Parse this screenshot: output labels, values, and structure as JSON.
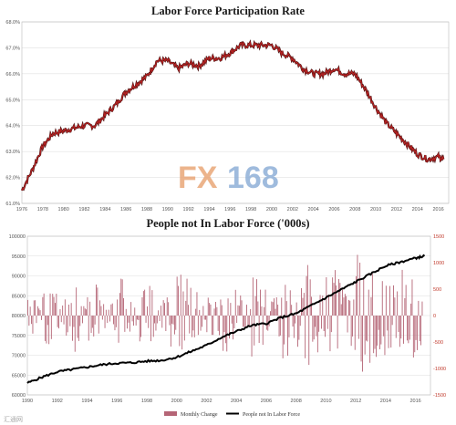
{
  "chart_data": [
    {
      "type": "line",
      "title": "Labor Force Participation Rate",
      "xlabel": "",
      "ylabel": "",
      "xlim": [
        1976,
        2017
      ],
      "ylim": [
        61,
        68
      ],
      "x_ticks": [
        "1976",
        "1978",
        "1980",
        "1982",
        "1984",
        "1986",
        "1988",
        "1990",
        "1992",
        "1994",
        "1996",
        "1998",
        "2000",
        "2002",
        "2004",
        "2006",
        "2008",
        "2010",
        "2012",
        "2014",
        "2016"
      ],
      "y_ticks": [
        "61.0%",
        "62.0%",
        "63.0%",
        "64.0%",
        "65.0%",
        "66.0%",
        "67.0%",
        "68.0%"
      ],
      "grid": true,
      "series": [
        {
          "color": "#b22222",
          "x": [
            1976,
            1977,
            1978,
            1979,
            1980,
            1981,
            1982,
            1983,
            1984,
            1985,
            1986,
            1987,
            1988,
            1989,
            1990,
            1991,
            1992,
            1993,
            1994,
            1995,
            1996,
            1997,
            1998,
            1999,
            2000,
            2001,
            2002,
            2003,
            2004,
            2005,
            2006,
            2007,
            2008,
            2009,
            2010,
            2011,
            2012,
            2013,
            2014,
            2015,
            2016,
            2016.5
          ],
          "y": [
            61.5,
            62.3,
            63.2,
            63.7,
            63.8,
            63.9,
            64.0,
            64.0,
            64.4,
            64.8,
            65.3,
            65.6,
            65.9,
            66.5,
            66.5,
            66.2,
            66.4,
            66.3,
            66.6,
            66.6,
            66.8,
            67.1,
            67.1,
            67.1,
            67.1,
            66.8,
            66.6,
            66.2,
            66.0,
            66.0,
            66.2,
            66.0,
            66.0,
            65.4,
            64.7,
            64.1,
            63.7,
            63.3,
            62.9,
            62.7,
            62.8,
            62.7
          ]
        }
      ]
    },
    {
      "type": "bar",
      "title": "People not In Labor Force ('000s)",
      "xlabel": "",
      "ylabel": "",
      "xlim": [
        1990,
        2017
      ],
      "ylim": [
        60000,
        100000
      ],
      "y2lim": [
        -1500,
        1500
      ],
      "x_ticks": [
        "1990",
        "1992",
        "1994",
        "1996",
        "1998",
        "2000",
        "2002",
        "2004",
        "2006",
        "2008",
        "2010",
        "2012",
        "2014",
        "2016"
      ],
      "y_ticks": [
        "60000",
        "65000",
        "70000",
        "75000",
        "80000",
        "85000",
        "90000",
        "95000",
        "100000"
      ],
      "y2_ticks": [
        "-1500",
        "-1000",
        "-500",
        "0",
        "500",
        "1000",
        "1500"
      ],
      "grid": true,
      "legend_position": "bottom-center",
      "series": [
        {
          "name": "Monthly Change",
          "axis": "right",
          "color": "#b56576",
          "x": [
            1990,
            1990.5,
            1991,
            1991.5,
            1992,
            1992.5,
            1993,
            1993.5,
            1994,
            1994.5,
            1995,
            1995.5,
            1996,
            1996.5,
            1997,
            1997.5,
            1998,
            1998.5,
            1999,
            1999.5,
            2000,
            2000.5,
            2001,
            2001.5,
            2002,
            2002.5,
            2003,
            2003.5,
            2004,
            2004.5,
            2005,
            2005.5,
            2006,
            2006.5,
            2007,
            2007.5,
            2008,
            2008.5,
            2009,
            2009.5,
            2010,
            2010.5,
            2011,
            2011.5,
            2012,
            2012.5,
            2013,
            2013.5,
            2014,
            2014.5,
            2015,
            2015.5,
            2016,
            2016.5
          ],
          "y": [
            400,
            -300,
            600,
            -500,
            300,
            -400,
            700,
            -200,
            500,
            -600,
            300,
            -300,
            800,
            -400,
            200,
            -500,
            600,
            -300,
            400,
            -600,
            800,
            -700,
            500,
            -300,
            600,
            -400,
            700,
            -500,
            400,
            -300,
            800,
            -600,
            300,
            -400,
            900,
            -500,
            600,
            -1100,
            700,
            -600,
            800,
            -900,
            600,
            -700,
            1200,
            -1000,
            800,
            -900,
            700,
            -600,
            900,
            -800,
            1000,
            -700
          ]
        },
        {
          "name": "People not In Labor Force",
          "axis": "left",
          "color": "#000000",
          "type": "line",
          "x": [
            1990,
            1991,
            1992,
            1993,
            1994,
            1995,
            1996,
            1997,
            1998,
            1999,
            2000,
            2001,
            2002,
            2003,
            2004,
            2005,
            2006,
            2007,
            2008,
            2009,
            2010,
            2011,
            2012,
            2013,
            2014,
            2015,
            2016,
            2016.6
          ],
          "y": [
            63000,
            64500,
            65800,
            66400,
            67000,
            67600,
            68000,
            68100,
            68500,
            68700,
            69500,
            71000,
            72500,
            74500,
            76000,
            77500,
            78000,
            79500,
            80500,
            82500,
            84500,
            86500,
            88500,
            90500,
            92500,
            93500,
            94500,
            95000
          ]
        }
      ]
    }
  ],
  "watermark": {
    "fx": "FX",
    "num": "168"
  },
  "credit": "汇通网"
}
